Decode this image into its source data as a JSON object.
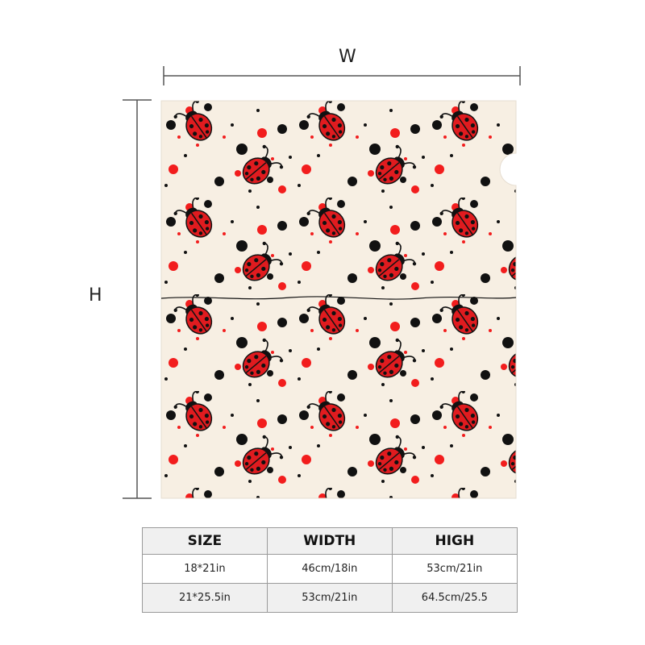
{
  "dimensions": {
    "width_label": "W",
    "height_label": "H"
  },
  "colors": {
    "fabric": "#f7efe3",
    "ladybug_red": "#e01b1f",
    "dot_red": "#f21d1d",
    "dot_black": "#111111",
    "line": "#555555"
  },
  "icons": [
    "ladybug-icon"
  ],
  "size_table": {
    "headers": [
      "SIZE",
      "WIDTH",
      "HIGH"
    ],
    "rows": [
      [
        "18*21in",
        "46cm/18in",
        "53cm/21in"
      ],
      [
        "21*25.5in",
        "53cm/21in",
        "64.5cm/25.5"
      ]
    ]
  }
}
